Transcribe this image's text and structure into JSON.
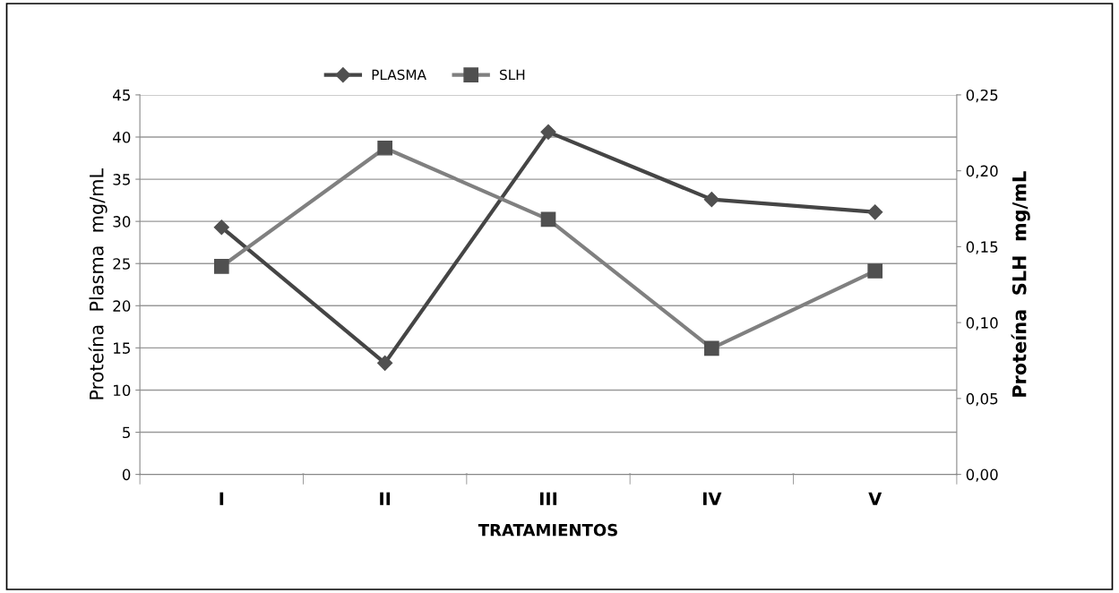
{
  "chart_data": {
    "type": "line",
    "xlabel": "TRATAMIENTOS",
    "ylabel": "Proteína  Plasma  mg/mL",
    "y2label": "Proteína  SLH  mg/mL",
    "categories": [
      "I",
      "II",
      "III",
      "IV",
      "V"
    ],
    "series": [
      {
        "name": "PLASMA",
        "color": "#454545",
        "marker": "diamond",
        "values": [
          29.3,
          13.2,
          40.6,
          32.6,
          31.1
        ]
      },
      {
        "name": "SLH",
        "color": "#808080",
        "marker": "square",
        "axis": "y2",
        "values": [
          0.137,
          0.215,
          0.168,
          0.083,
          0.134
        ]
      }
    ],
    "ylim": [
      0,
      45
    ],
    "yticks": [
      0,
      5,
      10,
      15,
      20,
      25,
      30,
      35,
      40,
      45
    ],
    "y2lim": [
      0,
      0.25
    ],
    "y2ticks": [
      {
        "value": 0,
        "label": "0,00"
      },
      {
        "value": 0.05,
        "label": "0,05"
      },
      {
        "value": 0.1,
        "label": "0,10"
      },
      {
        "value": 0.15,
        "label": "0,15"
      },
      {
        "value": 0.2,
        "label": "0,20"
      },
      {
        "value": 0.25,
        "label": "0,25"
      }
    ],
    "grid": "y",
    "legend": "top",
    "line_style": "solid"
  }
}
